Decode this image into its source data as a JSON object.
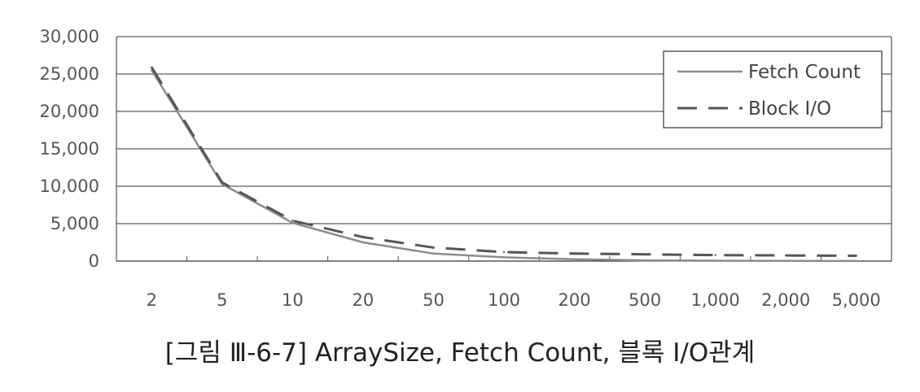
{
  "caption": "[그림 Ⅲ-6-7] ArraySize, Fetch Count, 블록 I/O관계",
  "chart_data": {
    "type": "line",
    "title": "",
    "xlabel": "",
    "ylabel": "",
    "categories": [
      "2",
      "5",
      "10",
      "20",
      "50",
      "100",
      "200",
      "500",
      "1,000",
      "2,000",
      "5,000"
    ],
    "ylim": [
      0,
      30000
    ],
    "yticks": [
      0,
      5000,
      10000,
      15000,
      20000,
      25000,
      30000
    ],
    "ytick_labels": [
      "0",
      "5,000",
      "10,000",
      "15,000",
      "20,000",
      "25,000",
      "30,000"
    ],
    "grid": "horizontal",
    "legend": "top-right",
    "series": [
      {
        "name": "Fetch Count",
        "style": "solid",
        "color": "#8c8c8c",
        "values": [
          25500,
          10300,
          5100,
          2500,
          1000,
          500,
          250,
          100,
          50,
          25,
          10
        ]
      },
      {
        "name": "Block I/O",
        "style": "dashed",
        "color": "#555555",
        "values": [
          25900,
          10500,
          5400,
          3200,
          1800,
          1200,
          1000,
          900,
          800,
          750,
          700
        ]
      }
    ]
  }
}
